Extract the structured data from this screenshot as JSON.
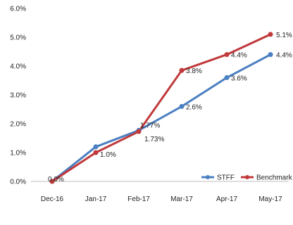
{
  "chart_data": {
    "type": "line",
    "categories": [
      "Dec-16",
      "Jan-17",
      "Feb-17",
      "Mar-17",
      "Apr-17",
      "May-17"
    ],
    "ylim": [
      0,
      6
    ],
    "yticks": [
      0,
      1,
      2,
      3,
      4,
      5,
      6
    ],
    "ytick_labels": [
      "0.0%",
      "1.0%",
      "2.0%",
      "3.0%",
      "4.0%",
      "5.0%",
      "6.0%"
    ],
    "grid": false,
    "legend_position": "bottom-right",
    "series": [
      {
        "name": "STFF",
        "color": "#4a7fc1",
        "values": [
          0.0,
          1.2,
          1.77,
          2.6,
          3.6,
          4.4
        ],
        "labels": [
          "0.0%",
          "",
          "1.77%",
          "2.6%",
          "3.6%",
          "4.4%"
        ]
      },
      {
        "name": "Benchmark",
        "color": "#c0393b",
        "values": [
          0.0,
          1.0,
          1.73,
          3.85,
          4.4,
          5.1
        ],
        "labels": [
          "",
          "1.0%",
          "1.73%",
          "3.8%",
          "4.4%",
          "5.1%"
        ]
      }
    ]
  }
}
